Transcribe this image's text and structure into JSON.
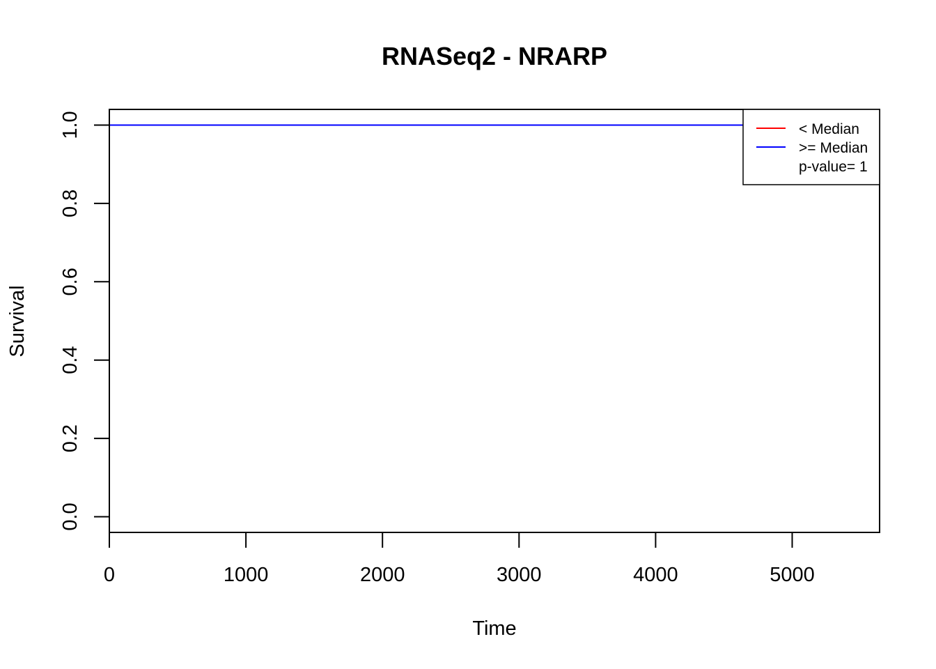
{
  "chart_data": {
    "type": "line",
    "title": "RNASeq2 - NRARP",
    "xlabel": "Time",
    "ylabel": "Survival",
    "xlim": [
      0,
      5640
    ],
    "ylim": [
      -0.04,
      1.04
    ],
    "x_ticks": [
      0,
      1000,
      2000,
      3000,
      4000,
      5000
    ],
    "y_ticks": [
      0.0,
      0.2,
      0.4,
      0.6,
      0.8,
      1.0
    ],
    "x_tick_labels": [
      "0",
      "1000",
      "2000",
      "3000",
      "4000",
      "5000"
    ],
    "y_tick_labels": [
      "0.0",
      "0.2",
      "0.4",
      "0.6",
      "0.8",
      "1.0"
    ],
    "grid": false,
    "legend_position": "top-right",
    "series": [
      {
        "name": "< Median",
        "color": "#ff0000",
        "x": [
          0,
          4650
        ],
        "y": [
          1.0,
          1.0
        ]
      },
      {
        "name": ">= Median",
        "color": "#0000ff",
        "x": [
          0,
          4650
        ],
        "y": [
          1.0,
          1.0
        ]
      }
    ],
    "legend": {
      "entries": [
        "< Median",
        ">= Median"
      ],
      "annotation": "p-value= 1"
    }
  }
}
